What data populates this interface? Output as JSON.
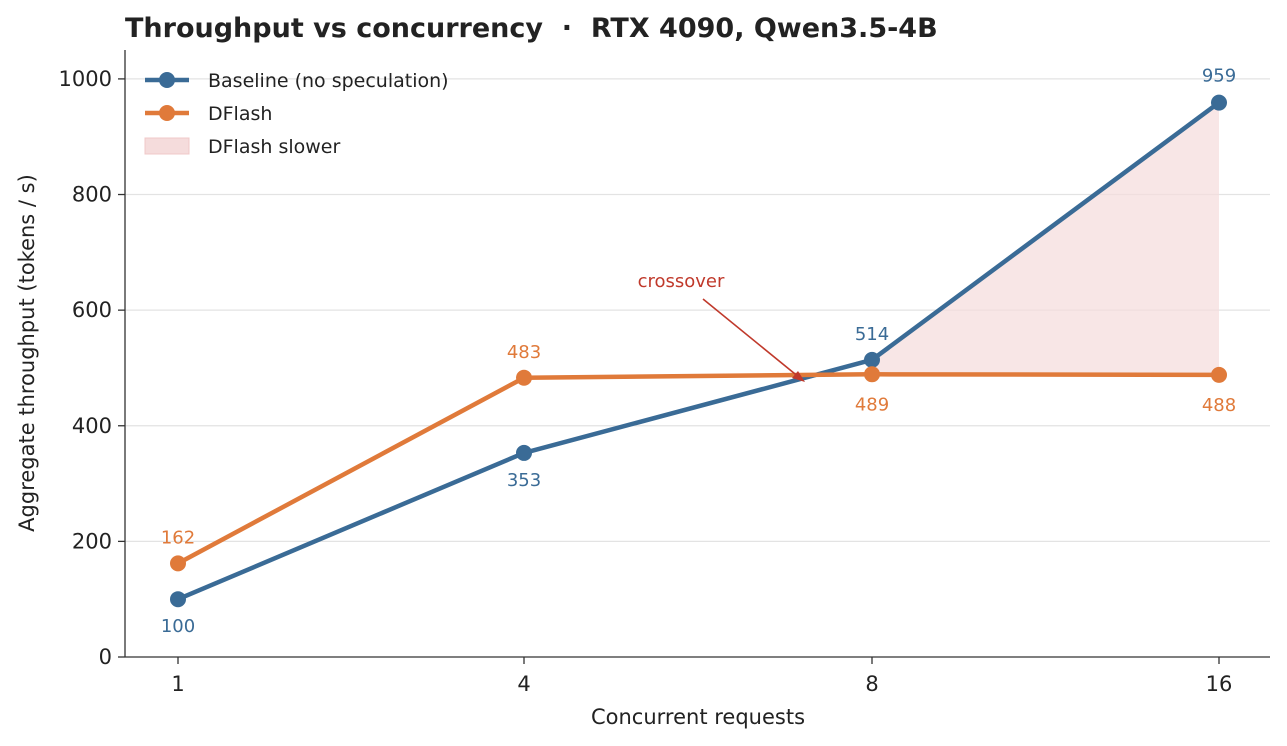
{
  "chart_data": {
    "type": "line",
    "title": "Throughput vs concurrency  ·  RTX 4090, Qwen3.5-4B",
    "xlabel": "Concurrent requests",
    "ylabel": "Aggregate throughput (tokens / s)",
    "categories": [
      "1",
      "4",
      "8",
      "16"
    ],
    "ylim": [
      0,
      1050
    ],
    "yticks": [
      "0",
      "200",
      "400",
      "600",
      "800",
      "1000"
    ],
    "grid": "horizontal",
    "legend_position": "top-left",
    "series": [
      {
        "name": "Baseline (no speculation)",
        "values": [
          100,
          353,
          514,
          959
        ],
        "labels": [
          "100",
          "353",
          "514",
          "959"
        ],
        "color": "#3a6b96"
      },
      {
        "name": "DFlash",
        "values": [
          162,
          483,
          489,
          488
        ],
        "labels": [
          "162",
          "483",
          "489",
          "488"
        ],
        "color": "#e07a3a"
      }
    ],
    "shaded_region": {
      "name": "DFlash slower",
      "x_from": "8",
      "x_to": "16",
      "color": "#f5dcdc"
    },
    "annotation": {
      "text": "crossover",
      "color": "#c0392b"
    }
  }
}
